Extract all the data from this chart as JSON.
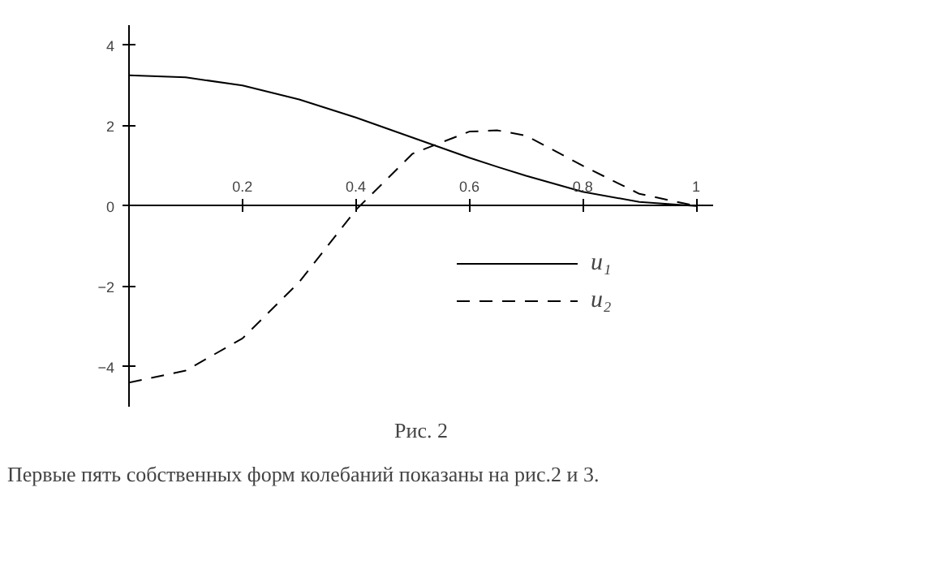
{
  "chart_data": {
    "type": "line",
    "line_style": "solid",
    "legend": "bottom right",
    "x": [
      0,
      0.1,
      0.2,
      0.3,
      0.4,
      0.5,
      0.6,
      0.65,
      0.7,
      0.8,
      0.9,
      1.0
    ],
    "xlim": [
      0,
      1.03
    ],
    "ylim": [
      -5,
      4.5
    ],
    "xticks": [
      0.2,
      0.4,
      0.6,
      0.8,
      1
    ],
    "yticks": [
      -4,
      -2,
      0,
      2,
      4
    ],
    "series": [
      {
        "name": "u₁",
        "color": "#000000",
        "values": [
          3.25,
          3.2,
          3.0,
          2.65,
          2.2,
          1.7,
          1.2,
          0.97,
          0.75,
          0.35,
          0.1,
          0
        ]
      },
      {
        "name": "u₂",
        "color": "#000000",
        "line_style": "dashed",
        "values": [
          -4.4,
          -4.1,
          -3.3,
          -1.9,
          -0.1,
          1.3,
          1.85,
          1.88,
          1.75,
          1.0,
          0.3,
          0
        ]
      }
    ],
    "annotations": [
      "Рис. 2",
      "Первые пять собственных форм колебаний показаны на рис.2 и 3."
    ]
  }
}
